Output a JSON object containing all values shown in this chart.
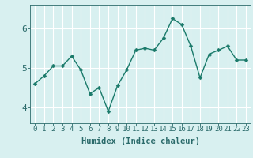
{
  "x": [
    0,
    1,
    2,
    3,
    4,
    5,
    6,
    7,
    8,
    9,
    10,
    11,
    12,
    13,
    14,
    15,
    16,
    17,
    18,
    19,
    20,
    21,
    22,
    23
  ],
  "y": [
    4.6,
    4.8,
    5.05,
    5.05,
    5.3,
    4.95,
    4.35,
    4.5,
    3.9,
    4.55,
    4.95,
    5.45,
    5.5,
    5.45,
    5.75,
    6.25,
    6.1,
    5.55,
    4.75,
    5.35,
    5.45,
    5.55,
    5.2,
    5.2
  ],
  "line_color": "#1a7a6a",
  "marker_color": "#1a7a6a",
  "bg_color": "#d8f0f0",
  "grid_color": "#ffffff",
  "axis_color": "#2a6a6a",
  "xlabel": "Humidex (Indice chaleur)",
  "ylim": [
    3.6,
    6.6
  ],
  "xlim": [
    -0.5,
    23.5
  ],
  "yticks": [
    4,
    5,
    6
  ],
  "xtick_labels": [
    "0",
    "1",
    "2",
    "3",
    "4",
    "5",
    "6",
    "7",
    "8",
    "9",
    "10",
    "11",
    "12",
    "13",
    "14",
    "15",
    "16",
    "17",
    "18",
    "19",
    "20",
    "21",
    "22",
    "23"
  ],
  "xlabel_fontsize": 7.5,
  "tick_fontsize": 6.5,
  "ytick_fontsize": 8,
  "marker_size": 2.5,
  "line_width": 1.0
}
